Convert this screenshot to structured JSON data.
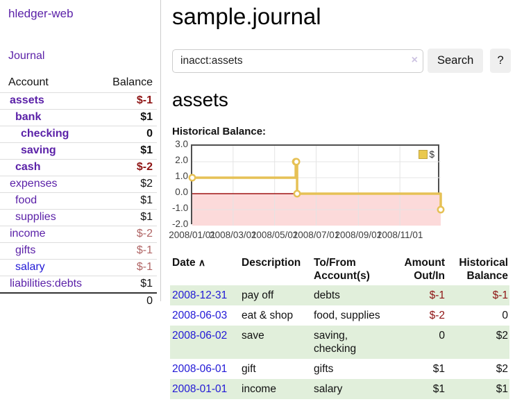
{
  "colors": {
    "accent_purple": "#5b21a8",
    "link_blue": "#2118d6",
    "negative_strong": "#8e1414",
    "negative_soft": "#b06565",
    "row_stripe_green": "#e1efdb",
    "chart_line_gold": "#e6c155",
    "chart_negative_fill": "#fcdada",
    "chart_zero_line": "#9e1414"
  },
  "sidebar": {
    "brand": "hledger-web",
    "journal_link": "Journal",
    "accounts_table": {
      "account_header": "Account",
      "balance_header": "Balance",
      "rows": [
        {
          "name": "assets",
          "balance": "$-1",
          "depth": 1,
          "bold": true,
          "balance_style": "neg-strong",
          "link_style": "purple"
        },
        {
          "name": "bank",
          "balance": "$1",
          "depth": 2,
          "bold": true,
          "balance_style": "pos",
          "link_style": "purple"
        },
        {
          "name": "checking",
          "balance": "0",
          "depth": 3,
          "bold": true,
          "balance_style": "pos",
          "link_style": "purple"
        },
        {
          "name": "saving",
          "balance": "$1",
          "depth": 3,
          "bold": true,
          "balance_style": "pos",
          "link_style": "purple"
        },
        {
          "name": "cash",
          "balance": "$-2",
          "depth": 2,
          "bold": true,
          "balance_style": "neg-strong",
          "link_style": "purple"
        },
        {
          "name": "expenses",
          "balance": "$2",
          "depth": 1,
          "bold": false,
          "balance_style": "pos",
          "link_style": "purple"
        },
        {
          "name": "food",
          "balance": "$1",
          "depth": 2,
          "bold": false,
          "balance_style": "pos",
          "link_style": "purple"
        },
        {
          "name": "supplies",
          "balance": "$1",
          "depth": 2,
          "bold": false,
          "balance_style": "pos",
          "link_style": "purple"
        },
        {
          "name": "income",
          "balance": "$-2",
          "depth": 1,
          "bold": false,
          "balance_style": "neg-soft",
          "link_style": "purple"
        },
        {
          "name": "gifts",
          "balance": "$-1",
          "depth": 2,
          "bold": false,
          "balance_style": "neg-soft",
          "link_style": "purple"
        },
        {
          "name": "salary",
          "balance": "$-1",
          "depth": 2,
          "bold": false,
          "balance_style": "neg-soft",
          "link_style": "blue"
        },
        {
          "name": "liabilities:debts",
          "balance": "$1",
          "depth": 1,
          "bold": false,
          "balance_style": "pos",
          "link_style": "purple"
        }
      ],
      "total": "0"
    }
  },
  "main": {
    "title": "sample.journal",
    "search": {
      "value": "inacct:assets",
      "clear_icon": "×",
      "search_button": "Search",
      "help_button": "?"
    },
    "account_heading": "assets",
    "chart_title": "Historical Balance:"
  },
  "chart_data": {
    "type": "line",
    "style": "step",
    "title": "Historical Balance:",
    "legend_position": "top-right",
    "grid": true,
    "x_range": [
      "2008-01-01",
      "2008-12-31"
    ],
    "ylim": [
      -2,
      3
    ],
    "y_ticks": [
      3.0,
      2.0,
      1.0,
      0.0,
      -1.0,
      -2.0
    ],
    "x_ticks": [
      "2008/01/01",
      "2008/03/01",
      "2008/05/01",
      "2008/07/01",
      "2008/09/01",
      "2008/11/01"
    ],
    "series": [
      {
        "name": "$",
        "points": [
          [
            "2008-01-01",
            1
          ],
          [
            "2008-06-01",
            2
          ],
          [
            "2008-06-02",
            2
          ],
          [
            "2008-06-03",
            0
          ],
          [
            "2008-12-31",
            -1
          ]
        ]
      }
    ]
  },
  "register": {
    "headers": [
      {
        "text": "Date",
        "align": "left"
      },
      {
        "text": "Description",
        "align": "left"
      },
      {
        "text": "To/From Account(s)",
        "align": "left"
      },
      {
        "text": "Amount Out/In",
        "align": "right"
      },
      {
        "text": "Historical Balance",
        "align": "right"
      }
    ],
    "sort_indicator": "∧",
    "rows": [
      {
        "date": "2008-12-31",
        "description": "pay off",
        "accounts": "debts",
        "amount": "$-1",
        "amount_style": "neg-strong",
        "balance": "$-1",
        "balance_style": "neg-strong"
      },
      {
        "date": "2008-06-03",
        "description": "eat & shop",
        "accounts": "food, supplies",
        "amount": "$-2",
        "amount_style": "neg-strong",
        "balance": "0",
        "balance_style": "pos"
      },
      {
        "date": "2008-06-02",
        "description": "save",
        "accounts": "saving, checking",
        "amount": "0",
        "amount_style": "pos",
        "balance": "$2",
        "balance_style": "pos"
      },
      {
        "date": "2008-06-01",
        "description": "gift",
        "accounts": "gifts",
        "amount": "$1",
        "amount_style": "pos",
        "balance": "$2",
        "balance_style": "pos"
      },
      {
        "date": "2008-01-01",
        "description": "income",
        "accounts": "salary",
        "amount": "$1",
        "amount_style": "pos",
        "balance": "$1",
        "balance_style": "pos"
      }
    ]
  }
}
